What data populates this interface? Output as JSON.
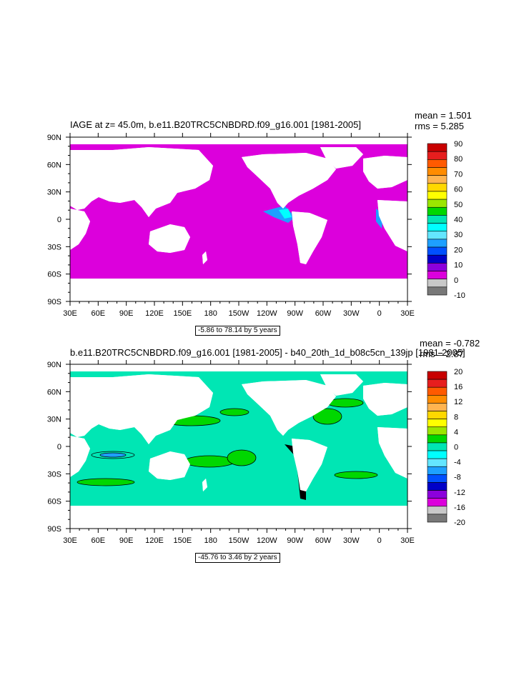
{
  "chart_data": [
    {
      "type": "heatmap",
      "title": "IAGE at z=  45.0m, b.e11.B20TRC5CNBDRD.f09_g16.001 [1981-2005]",
      "stats": {
        "mean": "mean = 1.501",
        "rms": "rms = 5.285"
      },
      "range_label": "-5.86 to 78.14 by 5 years",
      "x_ticks": [
        "30E",
        "60E",
        "90E",
        "120E",
        "150E",
        "180",
        "150W",
        "120W",
        "90W",
        "60W",
        "30W",
        "0",
        "30E"
      ],
      "y_ticks": [
        "90N",
        "60N",
        "30N",
        "0",
        "30S",
        "60S",
        "90S"
      ],
      "xlim": [
        30,
        390
      ],
      "ylim": [
        -90,
        90
      ],
      "colorbar": {
        "labels": [
          "90",
          "80",
          "70",
          "60",
          "50",
          "40",
          "30",
          "20",
          "10",
          "0",
          "-10"
        ],
        "colors": [
          "#c80000",
          "#e61e1e",
          "#ff5a00",
          "#ff8c00",
          "#ffb450",
          "#ffd800",
          "#ffff00",
          "#9be600",
          "#00d700",
          "#00e6b4",
          "#00ffff",
          "#64e6ff",
          "#1ea0ff",
          "#0050ff",
          "#0000c8",
          "#8c00dc",
          "#dc00dc",
          "#c8c8c8",
          "#787878"
        ]
      }
    },
    {
      "type": "heatmap",
      "title": "b.e11.B20TRC5CNBDRD.f09_g16.001 [1981-2005] - b40_20th_1d_b08c5cn_139jp [1981-2005]",
      "stats": {
        "mean": "mean = -0.782",
        "rms": "rms = 2.87"
      },
      "range_label": "-45.76 to 3.46 by 2 years",
      "x_ticks": [
        "30E",
        "60E",
        "90E",
        "120E",
        "150E",
        "180",
        "150W",
        "120W",
        "90W",
        "60W",
        "30W",
        "0",
        "30E"
      ],
      "y_ticks": [
        "90N",
        "60N",
        "30N",
        "0",
        "30S",
        "60S",
        "90S"
      ],
      "xlim": [
        30,
        390
      ],
      "ylim": [
        -90,
        90
      ],
      "colorbar": {
        "labels": [
          "20",
          "16",
          "12",
          "8",
          "4",
          "0",
          "-4",
          "-8",
          "-12",
          "-16",
          "-20"
        ],
        "colors": [
          "#c80000",
          "#e61e1e",
          "#ff5a00",
          "#ff8c00",
          "#ffb450",
          "#ffd800",
          "#ffff00",
          "#9be600",
          "#00d700",
          "#00e6b4",
          "#00ffff",
          "#64e6ff",
          "#1ea0ff",
          "#0050ff",
          "#0000c8",
          "#8c00dc",
          "#dc00dc",
          "#c8c8c8",
          "#787878"
        ]
      }
    }
  ]
}
